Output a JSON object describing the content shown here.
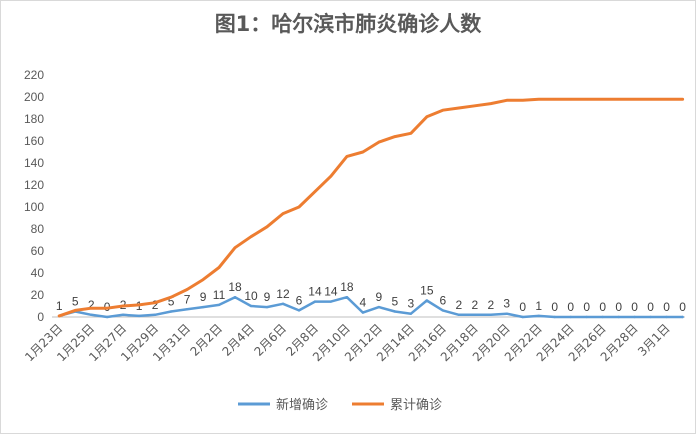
{
  "chart_data": {
    "type": "line",
    "title": "图1：哈尔滨市肺炎确诊人数",
    "xlabel": "",
    "ylabel": "",
    "ylim": [
      0,
      220
    ],
    "yticks": [
      0,
      20,
      40,
      60,
      80,
      100,
      120,
      140,
      160,
      180,
      200,
      220
    ],
    "grid": false,
    "legend_position": "bottom",
    "x": [
      "1月23日",
      "1月24日",
      "1月25日",
      "1月26日",
      "1月27日",
      "1月28日",
      "1月29日",
      "1月30日",
      "1月31日",
      "2月1日",
      "2月2日",
      "2月3日",
      "2月4日",
      "2月5日",
      "2月6日",
      "2月7日",
      "2月8日",
      "2月9日",
      "2月10日",
      "2月11日",
      "2月12日",
      "2月13日",
      "2月14日",
      "2月15日",
      "2月16日",
      "2月17日",
      "2月18日",
      "2月19日",
      "2月20日",
      "2月21日",
      "2月22日",
      "2月23日",
      "2月24日",
      "2月25日",
      "2月26日",
      "2月27日",
      "2月28日",
      "2月29日",
      "3月1日",
      "3月2日"
    ],
    "x_tick_labels": [
      "1月23日",
      "1月25日",
      "1月27日",
      "1月29日",
      "1月31日",
      "2月2日",
      "2月4日",
      "2月6日",
      "2月8日",
      "2月10日",
      "2月12日",
      "2月14日",
      "2月16日",
      "2月18日",
      "2月20日",
      "2月22日",
      "2月24日",
      "2月26日",
      "2月28日",
      "3月1日"
    ],
    "series": [
      {
        "name": "新增确诊",
        "color": "#5b9bd5",
        "values": [
          1,
          5,
          2,
          0,
          2,
          1,
          2,
          5,
          7,
          9,
          11,
          18,
          10,
          9,
          12,
          6,
          14,
          14,
          18,
          4,
          9,
          5,
          3,
          15,
          6,
          2,
          2,
          2,
          3,
          0,
          1,
          0,
          0,
          0,
          0,
          0,
          0,
          0,
          0,
          0
        ],
        "data_labels": true
      },
      {
        "name": "累计确诊",
        "color": "#ed7d31",
        "values": [
          1,
          6,
          8,
          8,
          10,
          11,
          13,
          18,
          25,
          34,
          45,
          63,
          73,
          82,
          94,
          100,
          114,
          128,
          146,
          150,
          159,
          164,
          167,
          182,
          188,
          190,
          192,
          194,
          197,
          197,
          198,
          198,
          198,
          198,
          198,
          198,
          198,
          198,
          198,
          198
        ],
        "data_labels": false
      }
    ]
  }
}
